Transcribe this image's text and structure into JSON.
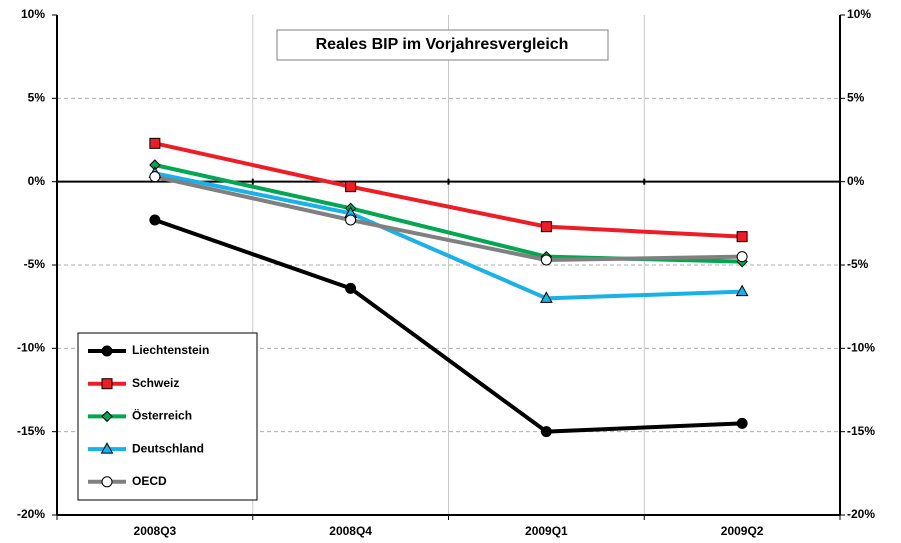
{
  "chart_data": {
    "type": "line",
    "title": "Reales BIP im Vorjahresvergleich",
    "categories": [
      "2008Q3",
      "2008Q4",
      "2009Q1",
      "2009Q2"
    ],
    "series": [
      {
        "name": "Liechtenstein",
        "color": "#000000",
        "marker": "circle",
        "values": [
          -2.3,
          -6.4,
          -15.0,
          -14.5
        ]
      },
      {
        "name": "Schweiz",
        "color": "#ee1c25",
        "marker": "square",
        "values": [
          2.3,
          -0.3,
          -2.7,
          -3.3
        ]
      },
      {
        "name": "Österreich",
        "color": "#00a650",
        "marker": "diamond",
        "values": [
          1.0,
          -1.6,
          -4.5,
          -4.8
        ]
      },
      {
        "name": "Deutschland",
        "color": "#1ab0e8",
        "marker": "triangle",
        "values": [
          0.5,
          -1.9,
          -7.0,
          -6.6
        ]
      },
      {
        "name": "OECD",
        "color": "#808080",
        "marker": "circle-open",
        "values": [
          0.3,
          -2.3,
          -4.7,
          -4.5
        ]
      }
    ],
    "ylim": [
      -20,
      10
    ],
    "yticks": [
      {
        "value": -20,
        "label": "-20%"
      },
      {
        "value": -15,
        "label": "-15%"
      },
      {
        "value": -10,
        "label": "-10%"
      },
      {
        "value": -5,
        "label": "-5%"
      },
      {
        "value": 0,
        "label": "0%"
      },
      {
        "value": 5,
        "label": "5%"
      },
      {
        "value": 10,
        "label": "10%"
      }
    ],
    "y2lim": [
      -20,
      10
    ],
    "y2ticks": [
      {
        "value": -20,
        "label": "-20%"
      },
      {
        "value": -15,
        "label": "-15%"
      },
      {
        "value": -10,
        "label": "-10%"
      },
      {
        "value": -5,
        "label": "-5%"
      },
      {
        "value": 0,
        "label": "0%"
      },
      {
        "value": 5,
        "label": "5%"
      },
      {
        "value": 10,
        "label": "10%"
      }
    ],
    "grid": true,
    "legend": "bottom-left"
  }
}
